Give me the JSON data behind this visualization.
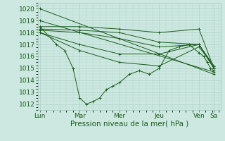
{
  "bg_color": "#cce8e0",
  "grid_color": "#a8ccc4",
  "line_color": "#1a5c1a",
  "marker": "+",
  "ylabel_ticks": [
    1012,
    1013,
    1014,
    1015,
    1016,
    1017,
    1018,
    1019,
    1020
  ],
  "ylim": [
    1011.5,
    1020.5
  ],
  "xlabel": "Pression niveau de la mer( hPa )",
  "xlabel_fontsize": 7.5,
  "tick_label_fontsize": 6.5,
  "xtick_labels": [
    "Lun",
    "Mar",
    "Mer",
    "Jeu",
    "Ven",
    "Sa"
  ],
  "xtick_positions": [
    0,
    48,
    96,
    144,
    192,
    210
  ],
  "xlim": [
    -2,
    218
  ],
  "line_width": 0.7,
  "marker_size": 2.5,
  "marker_ew": 0.7,
  "series": [
    {
      "x": [
        0,
        210
      ],
      "y": [
        1020.0,
        1014.5
      ]
    },
    {
      "x": [
        0,
        210
      ],
      "y": [
        1019.0,
        1014.7
      ]
    },
    {
      "x": [
        0,
        48,
        96,
        144,
        192,
        210
      ],
      "y": [
        1018.5,
        1018.5,
        1018.3,
        1018.0,
        1018.3,
        1015.0
      ]
    },
    {
      "x": [
        0,
        48,
        96,
        144,
        192,
        210
      ],
      "y": [
        1018.3,
        1018.2,
        1018.0,
        1017.2,
        1017.0,
        1015.0
      ]
    },
    {
      "x": [
        0,
        48,
        96,
        144,
        192,
        210
      ],
      "y": [
        1018.2,
        1018.0,
        1017.5,
        1016.8,
        1017.0,
        1015.0
      ]
    },
    {
      "x": [
        0,
        48,
        96,
        144,
        192,
        210
      ],
      "y": [
        1018.0,
        1017.0,
        1016.2,
        1016.2,
        1017.0,
        1015.2
      ]
    },
    {
      "x": [
        0,
        48,
        96,
        144,
        192,
        210
      ],
      "y": [
        1018.0,
        1016.5,
        1015.5,
        1015.2,
        1016.8,
        1015.2
      ]
    },
    {
      "x": [
        0,
        20,
        30,
        40,
        48,
        56,
        64,
        72,
        80,
        88,
        96,
        108,
        120,
        132,
        144,
        156,
        168,
        180,
        192,
        198,
        202,
        206,
        210
      ],
      "y": [
        1018.5,
        1017.0,
        1016.5,
        1015.0,
        1012.5,
        1012.0,
        1012.2,
        1012.5,
        1013.2,
        1013.5,
        1013.8,
        1014.5,
        1014.8,
        1014.5,
        1015.0,
        1016.5,
        1016.8,
        1017.0,
        1016.3,
        1016.0,
        1015.5,
        1015.0,
        1014.8
      ]
    }
  ]
}
